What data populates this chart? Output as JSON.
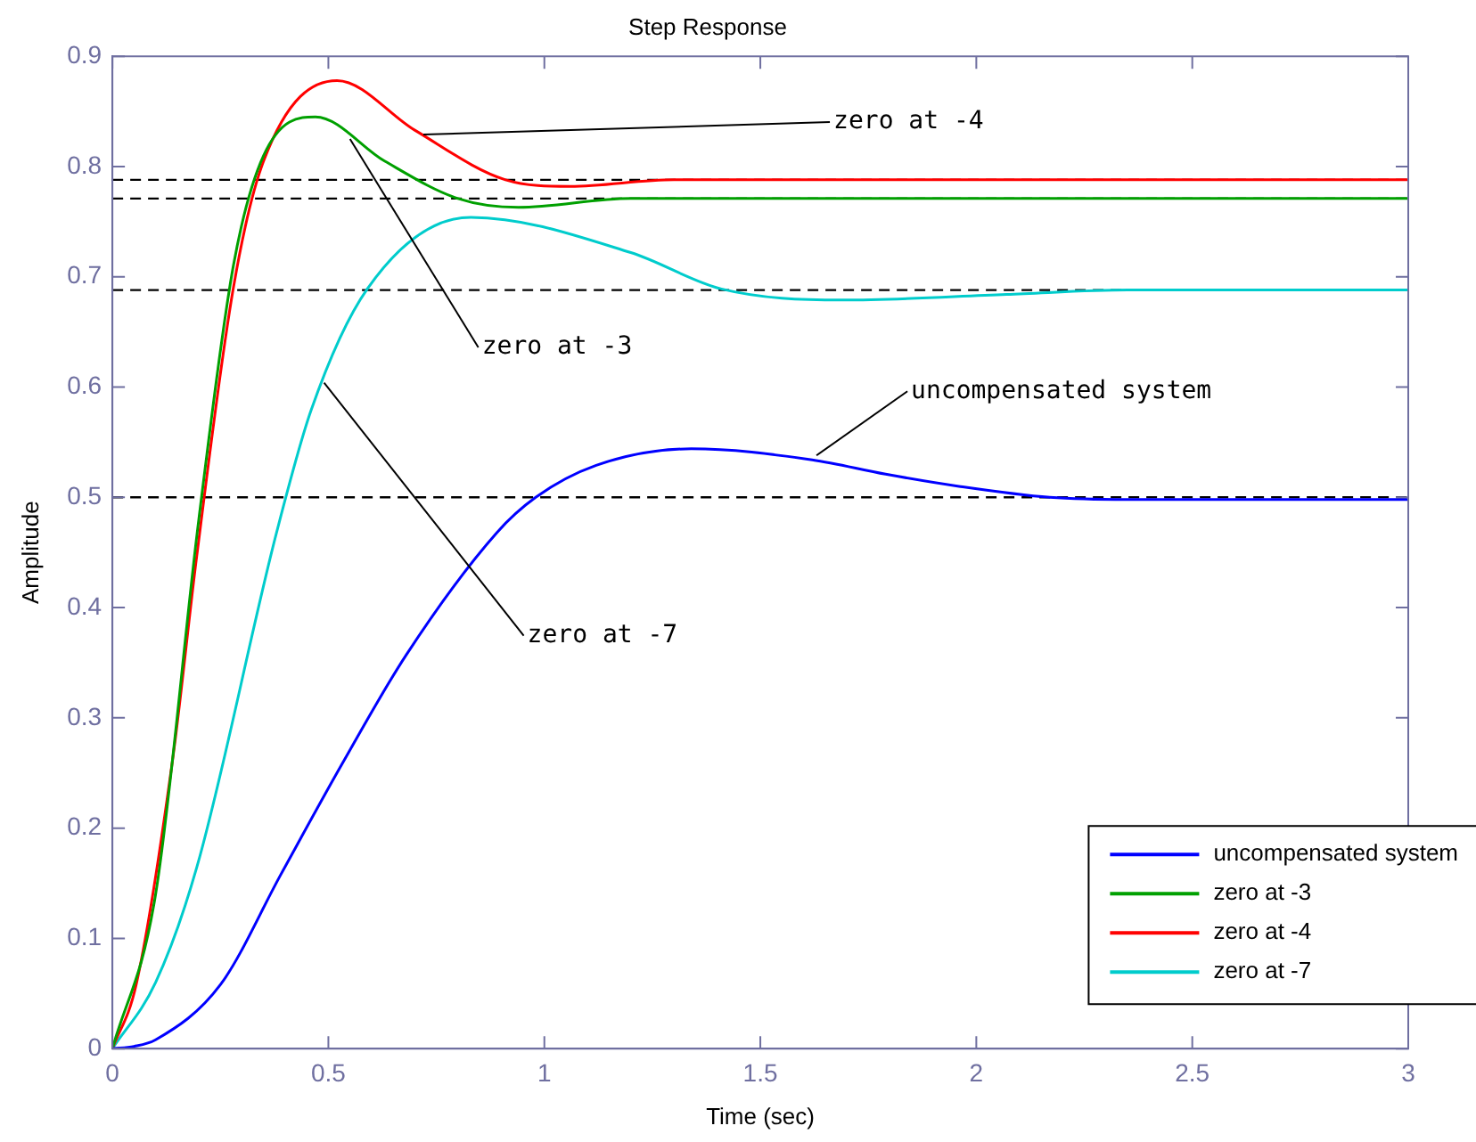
{
  "chart_data": {
    "type": "line",
    "title": "Step Response",
    "xlabel": "Time (sec)",
    "ylabel": "Amplitude",
    "xlim": [
      0,
      3
    ],
    "xticks": [
      0,
      0.5,
      1,
      1.5,
      2,
      2.5,
      3
    ],
    "ylim": [
      0,
      0.9
    ],
    "yticks": [
      0,
      0.1,
      0.2,
      0.3,
      0.4,
      0.5,
      0.6,
      0.7,
      0.8,
      0.9
    ],
    "grid": false,
    "legend": "bottom right",
    "marker": "none",
    "line_style": "solid",
    "series": [
      {
        "name": "uncompensated system",
        "color": "#0000ff",
        "x": [
          0,
          0.05,
          0.1,
          0.25,
          0.39,
          0.53,
          0.68,
          0.89,
          0.98,
          1.12,
          1.34,
          1.62,
          1.79,
          1.96,
          2.17,
          2.35,
          3
        ],
        "values": [
          0,
          0.002,
          0.008,
          0.058,
          0.158,
          0.257,
          0.357,
          0.468,
          0.5,
          0.529,
          0.544,
          0.534,
          0.521,
          0.51,
          0.5,
          0.498,
          0.498
        ]
      },
      {
        "name": "zero at -3",
        "color": "#00a000",
        "x": [
          0,
          0.1,
          0.2,
          0.28,
          0.35,
          0.47,
          0.63,
          0.8,
          0.94,
          1.2,
          3
        ],
        "values": [
          0,
          0.14,
          0.48,
          0.71,
          0.81,
          0.845,
          0.805,
          0.771,
          0.763,
          0.771,
          0.771
        ]
      },
      {
        "name": "zero at -4",
        "color": "#ff0000",
        "x": [
          0,
          0.055,
          0.14,
          0.195,
          0.28,
          0.35,
          0.52,
          0.7,
          0.91,
          1.06,
          1.3,
          3
        ],
        "values": [
          0,
          0.058,
          0.264,
          0.446,
          0.69,
          0.805,
          0.878,
          0.833,
          0.788,
          0.782,
          0.788,
          0.788
        ]
      },
      {
        "name": "zero at -7",
        "color": "#00cccc",
        "x": [
          0,
          0.1,
          0.195,
          0.38,
          0.46,
          0.59,
          0.83,
          1.2,
          1.41,
          1.69,
          2.07,
          2.35,
          3
        ],
        "values": [
          0,
          0.06,
          0.164,
          0.468,
          0.579,
          0.689,
          0.754,
          0.722,
          0.689,
          0.679,
          0.684,
          0.688,
          0.688
        ]
      }
    ],
    "ref_lines": [
      {
        "axis": "y",
        "value": 0.788,
        "color": "#000000",
        "line_style": "dashed"
      },
      {
        "axis": "y",
        "value": 0.771,
        "color": "#000000",
        "line_style": "dashed"
      },
      {
        "axis": "y",
        "value": 0.688,
        "color": "#000000",
        "line_style": "dashed"
      },
      {
        "axis": "y",
        "value": 0.5,
        "color": "#000000",
        "line_style": "dashed"
      }
    ],
    "annotations": [
      {
        "text": "zero at -4",
        "x": 0.72,
        "y": 0.829
      },
      {
        "text": "zero at -3",
        "x": 0.55,
        "y": 0.825
      },
      {
        "text": "zero at -7",
        "x": 0.49,
        "y": 0.604
      },
      {
        "text": "uncompensated system",
        "x": 1.63,
        "y": 0.538
      }
    ]
  }
}
